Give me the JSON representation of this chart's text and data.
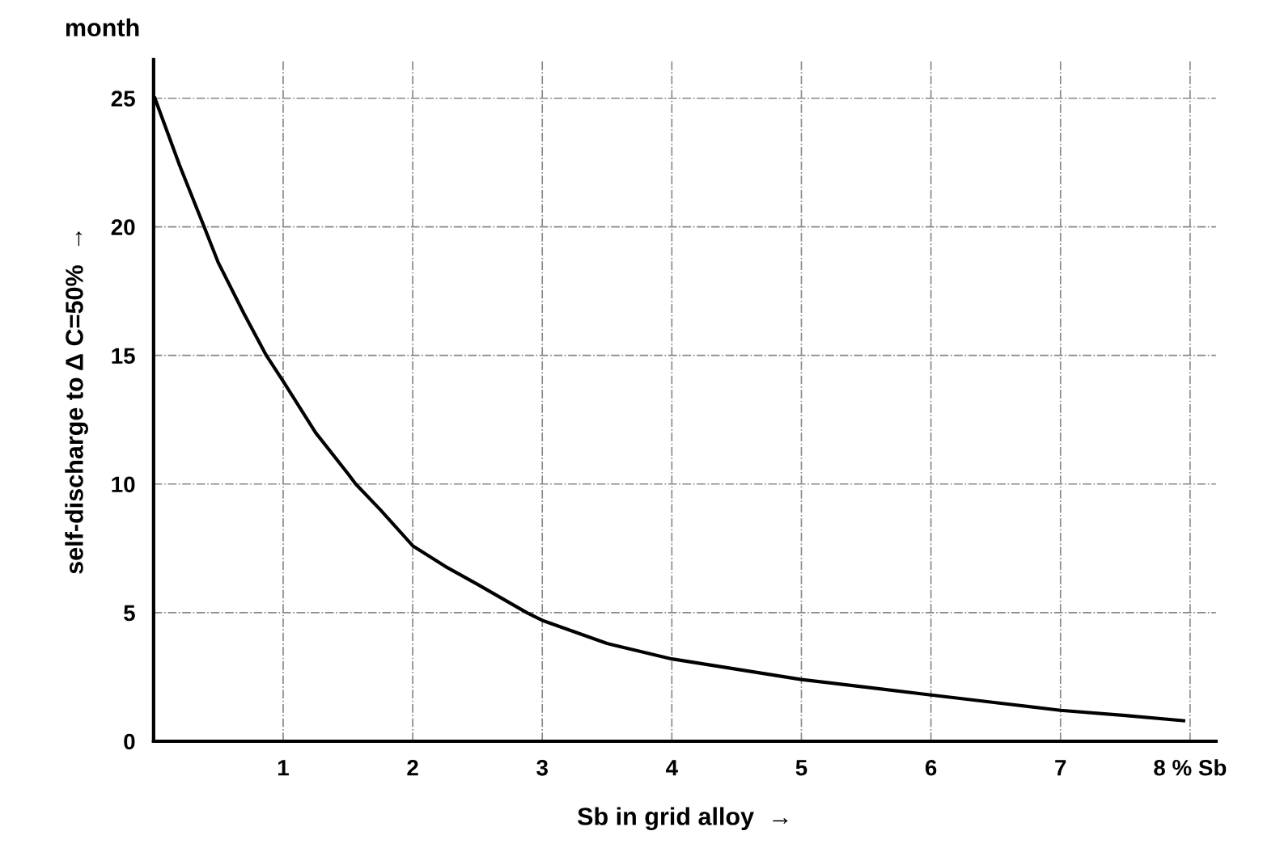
{
  "chart_data": {
    "type": "line",
    "xlabel": "Sb in grid alloy  →",
    "ylabel": "self-discharge to Δ C=50%  →",
    "annotations": [
      "month"
    ],
    "x": [
      0.01,
      0.2,
      0.39,
      0.5,
      0.7,
      0.87,
      1,
      1.25,
      1.5,
      1.56,
      1.75,
      2,
      2.25,
      2.5,
      2.88,
      3,
      3.5,
      4,
      4.5,
      5,
      5.5,
      6,
      6.5,
      7,
      7.5,
      7.95
    ],
    "series": [
      {
        "color": "#000000",
        "values": [
          25,
          22.4,
          20,
          18.6,
          16.6,
          15,
          14,
          12,
          10.4,
          10,
          9,
          7.6,
          6.8,
          6.1,
          5,
          4.7,
          3.8,
          3.2,
          2.8,
          2.4,
          2.1,
          1.8,
          1.5,
          1.2,
          1,
          0.8
        ]
      }
    ],
    "xlim": [
      0,
      8.2
    ],
    "ylim": [
      0,
      26.5
    ],
    "xticks": [
      1,
      2,
      3,
      4,
      5,
      6,
      7,
      {
        "value": 8,
        "label": "8 % Sb"
      }
    ],
    "yticks": [
      0,
      5,
      10,
      15,
      20,
      25
    ],
    "grid": true,
    "legend": false,
    "marker": "none",
    "line_style": "solid"
  }
}
